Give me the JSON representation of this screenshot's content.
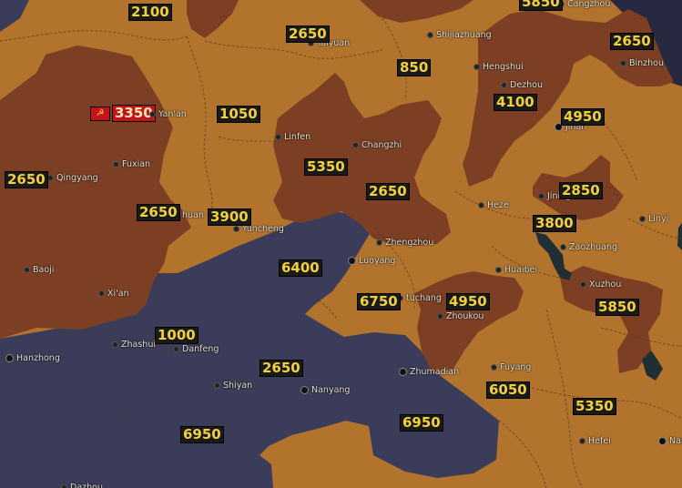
{
  "colors": {
    "ocher": "#b2742c",
    "brown": "#7d3f24",
    "navy": "#3a3c5a",
    "dark_navy": "#272940",
    "label_bg": "#1a1a1a",
    "label_text": "#f2d03c",
    "flag_red": "#c4141a"
  },
  "cities": [
    {
      "id": "taiyuan",
      "name": "Taiyuan",
      "capital": false
    },
    {
      "id": "shijiazhuang",
      "name": "Shijiazhuang",
      "capital": false
    },
    {
      "id": "cangzhou",
      "name": "Cangzhou",
      "capital": false
    },
    {
      "id": "hengshui",
      "name": "Hengshui",
      "capital": false
    },
    {
      "id": "dezhou",
      "name": "Dezhou",
      "capital": false
    },
    {
      "id": "binzhou",
      "name": "Binzhou",
      "capital": false
    },
    {
      "id": "jinan",
      "name": "Jinan",
      "capital": true
    },
    {
      "id": "yanan",
      "name": "Yan'an",
      "capital": false
    },
    {
      "id": "linfen",
      "name": "Linfen",
      "capital": false
    },
    {
      "id": "changzhi",
      "name": "Changzhi",
      "capital": false
    },
    {
      "id": "fuxian",
      "name": "Fuxian",
      "capital": false
    },
    {
      "id": "qingyang",
      "name": "Qingyang",
      "capital": false
    },
    {
      "id": "tongchuan",
      "name": "huan",
      "capital": false
    },
    {
      "id": "yuncheng",
      "name": "Yuncheng",
      "capital": false
    },
    {
      "id": "heze",
      "name": "Heze",
      "capital": false
    },
    {
      "id": "jining",
      "name": "Jining",
      "capital": false
    },
    {
      "id": "linyi",
      "name": "Linyi",
      "capital": false
    },
    {
      "id": "zhengzhou",
      "name": "Zhengzhou",
      "capital": false
    },
    {
      "id": "luoyang",
      "name": "Luoyang",
      "capital": true
    },
    {
      "id": "zaozhuang",
      "name": "Zaozhuang",
      "capital": false
    },
    {
      "id": "huaibei",
      "name": "Huaibei",
      "capital": false
    },
    {
      "id": "baoji",
      "name": "Baoji",
      "capital": false
    },
    {
      "id": "xian",
      "name": "Xi'an",
      "capital": false
    },
    {
      "id": "xuchang",
      "name": "tuchang",
      "capital": false
    },
    {
      "id": "xuzhou",
      "name": "Xuzhou",
      "capital": false
    },
    {
      "id": "zhoukou",
      "name": "Zhoukou",
      "capital": false
    },
    {
      "id": "zhashui",
      "name": "Zhashui",
      "capital": false
    },
    {
      "id": "danfeng",
      "name": "Danfeng",
      "capital": false
    },
    {
      "id": "hanzhong",
      "name": "Hanzhong",
      "capital": true
    },
    {
      "id": "fuyang",
      "name": "Fuyang",
      "capital": false
    },
    {
      "id": "zhumadian",
      "name": "Zhumadian",
      "capital": true
    },
    {
      "id": "shiyan",
      "name": "Shiyan",
      "capital": false
    },
    {
      "id": "nanyang",
      "name": "Nanyang",
      "capital": true
    },
    {
      "id": "hefei",
      "name": "Hefei",
      "capital": false
    },
    {
      "id": "nanjing",
      "name": "Nan",
      "capital": true
    },
    {
      "id": "dazhou",
      "name": "Dazhou",
      "capital": false
    }
  ],
  "troop_labels": [
    {
      "id": "l1",
      "value": "2100"
    },
    {
      "id": "l2",
      "value": "5850"
    },
    {
      "id": "l3",
      "value": "2650"
    },
    {
      "id": "l4",
      "value": "850"
    },
    {
      "id": "l5",
      "value": "2650"
    },
    {
      "id": "l6",
      "value": "1050"
    },
    {
      "id": "l7",
      "value": "4100"
    },
    {
      "id": "l8",
      "value": "4950"
    },
    {
      "id": "l9",
      "value": "2650"
    },
    {
      "id": "l10",
      "value": "5350"
    },
    {
      "id": "l11",
      "value": "2650"
    },
    {
      "id": "l12",
      "value": "2650"
    },
    {
      "id": "l13",
      "value": "3900"
    },
    {
      "id": "l14",
      "value": "2850"
    },
    {
      "id": "l15",
      "value": "3800"
    },
    {
      "id": "l16",
      "value": "6400"
    },
    {
      "id": "l17",
      "value": "6750"
    },
    {
      "id": "l18",
      "value": "4950"
    },
    {
      "id": "l19",
      "value": "5850"
    },
    {
      "id": "l20",
      "value": "1000"
    },
    {
      "id": "l21",
      "value": "2650"
    },
    {
      "id": "l22",
      "value": "6050"
    },
    {
      "id": "l23",
      "value": "5350"
    },
    {
      "id": "l24",
      "value": "6950"
    },
    {
      "id": "l25",
      "value": "6950"
    }
  ],
  "player_flag": {
    "value": "3350",
    "icon": "hammer-sickle-icon"
  }
}
